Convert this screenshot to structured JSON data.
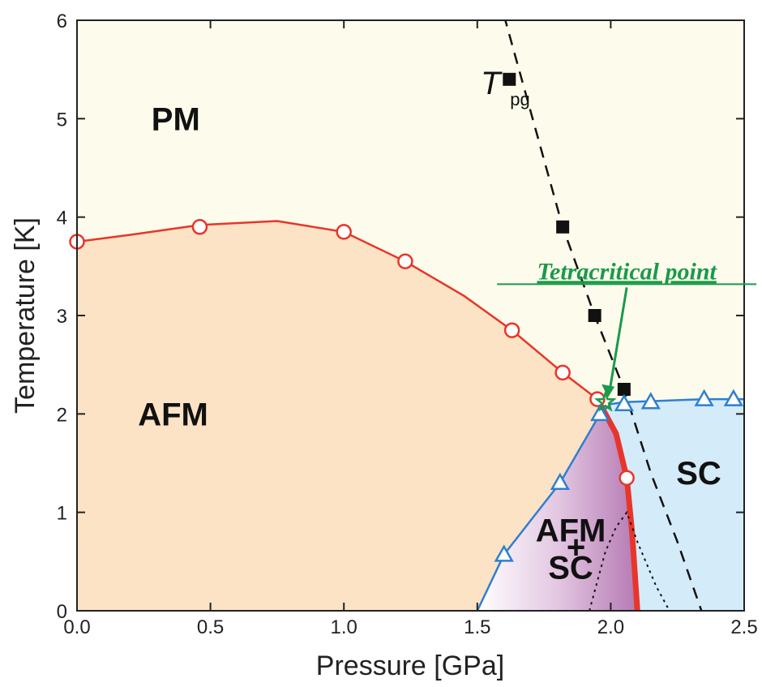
{
  "chart_data": {
    "type": "scatter",
    "xlabel": "Pressure [GPa]",
    "ylabel": "Temperature [K]",
    "xlim": [
      0,
      2.5
    ],
    "ylim": [
      0,
      6
    ],
    "xticks": [
      "0.0",
      "0.5",
      "1.0",
      "1.5",
      "2.0",
      "2.5"
    ],
    "yticks": [
      "0",
      "1",
      "2",
      "3",
      "4",
      "5",
      "6"
    ],
    "grid": false,
    "regions": [
      {
        "label": "PM",
        "x": 0.37,
        "y": 5.0
      },
      {
        "label": "AFM",
        "x": 0.36,
        "y": 2.0
      },
      {
        "label": "SC",
        "x": 2.33,
        "y": 1.4
      },
      {
        "label": "AFM",
        "x": 1.85,
        "y": 0.82
      },
      {
        "label": "+",
        "x": 1.87,
        "y": 0.65
      },
      {
        "label": "SC",
        "x": 1.85,
        "y": 0.44
      }
    ],
    "series": [
      {
        "marker": "open-circle",
        "color": "#e8352a",
        "points": [
          [
            0.0,
            3.75
          ],
          [
            0.46,
            3.9
          ],
          [
            1.0,
            3.85
          ],
          [
            1.23,
            3.55
          ],
          [
            1.63,
            2.85
          ],
          [
            1.82,
            2.42
          ],
          [
            1.95,
            2.15
          ],
          [
            2.06,
            1.35
          ]
        ]
      },
      {
        "marker": "filled-square",
        "color": "#111111",
        "points": [
          [
            1.62,
            5.4
          ],
          [
            1.82,
            3.9
          ],
          [
            1.94,
            3.0
          ],
          [
            2.05,
            2.25
          ]
        ]
      },
      {
        "marker": "open-triangle",
        "color": "#2f7fd0",
        "points": [
          [
            1.6,
            0.57
          ],
          [
            1.81,
            1.3
          ],
          [
            1.96,
            2.0
          ],
          [
            2.05,
            2.1
          ],
          [
            2.15,
            2.12
          ],
          [
            2.35,
            2.15
          ],
          [
            2.46,
            2.15
          ]
        ]
      },
      {
        "marker": "open-star",
        "color": "#1a9a4a",
        "points": [
          [
            1.98,
            2.12
          ]
        ]
      }
    ],
    "annotations": [
      {
        "text": "T",
        "subscript": "pg",
        "x": 1.55,
        "y": 5.35
      },
      {
        "text": "Tetracritical point",
        "x": 2.06,
        "y": 3.45
      }
    ],
    "colors": {
      "pm_region": "#fdfcec",
      "afm_region": "#fce3c5",
      "sc_region": "#d4ebfa",
      "afm_sc_region": "#c089be",
      "afm_boundary": "#e8352a",
      "sc_boundary": "#2f7fd0",
      "tetracritical": "#1a9a4a"
    }
  }
}
